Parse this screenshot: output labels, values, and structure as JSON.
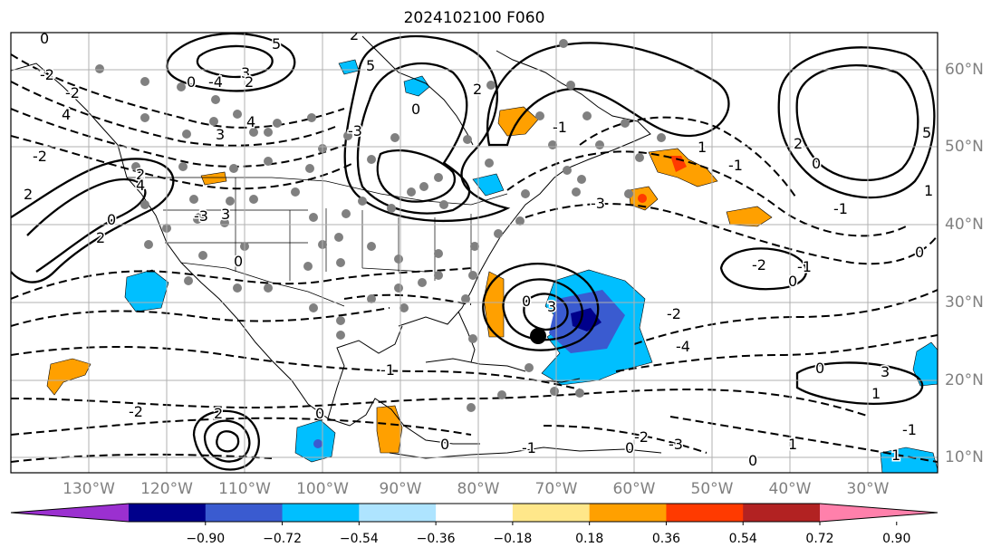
{
  "title": "2024102100 F060",
  "lon_labels": [
    "130°W",
    "120°W",
    "110°W",
    "100°W",
    "90°W",
    "80°W",
    "70°W",
    "60°W",
    "50°W",
    "40°W",
    "30°W"
  ],
  "lat_labels": [
    "60°N",
    "50°N",
    "40°N",
    "30°N",
    "20°N",
    "10°N"
  ],
  "colorbar": {
    "ticks": [
      "−0.90",
      "−0.72",
      "−0.54",
      "−0.36",
      "−0.18",
      "0.18",
      "0.36",
      "0.54",
      "0.72",
      "0.90"
    ],
    "colors": [
      "#9b30d0",
      "#00008b",
      "#3a5bd0",
      "#00bfff",
      "#aee4ff",
      "#ffffff",
      "#ffe78a",
      "#ffa000",
      "#ff3a00",
      "#b22222",
      "#ff80ab"
    ]
  },
  "contour_labels": [
    "0",
    "3",
    "2",
    "4",
    "3",
    "5",
    "2",
    "5",
    "4",
    "2",
    "0",
    "2",
    "4",
    "3",
    "0",
    "-4",
    "-3",
    "3",
    "0",
    "-2",
    "-3",
    "-2",
    "0",
    "2",
    "0",
    "-2",
    "0",
    "3",
    "1",
    "-1",
    "-2",
    "0",
    "2",
    "1",
    "-1",
    "5",
    "1",
    "-3",
    "2",
    "-1",
    "-2",
    "0",
    "-1",
    "0",
    "0",
    "-2",
    "-1",
    "0",
    "-1",
    "-4",
    "-3",
    "2",
    "-2",
    "-1",
    "1",
    "0",
    "1",
    "0"
  ]
}
